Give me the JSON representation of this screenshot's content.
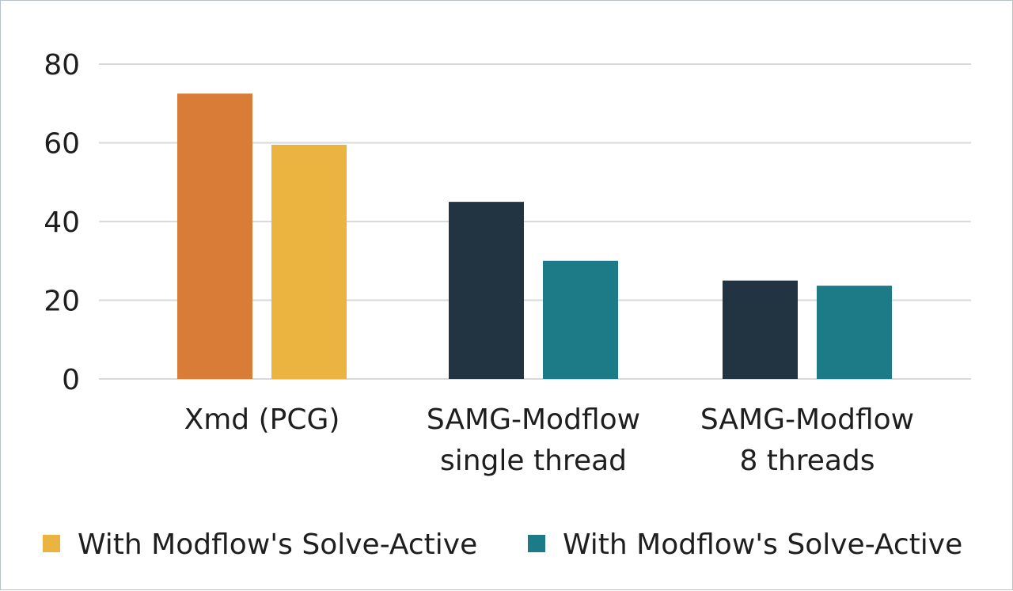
{
  "chart_data": {
    "type": "bar",
    "title": "",
    "xlabel": "",
    "ylabel": "",
    "ylim": [
      0,
      80
    ],
    "yticks": [
      0,
      20,
      40,
      60,
      80
    ],
    "grid": true,
    "categories": [
      [
        "Xmd (PCG)"
      ],
      [
        "SAMG-Modflow",
        "single thread"
      ],
      [
        "SAMG-Modflow",
        "8 threads"
      ]
    ],
    "bars": [
      [
        {
          "value": 72.5,
          "color": "#d97c38"
        },
        {
          "value": 59.5,
          "color": "#ebb440"
        }
      ],
      [
        {
          "value": 45,
          "color": "#223441"
        },
        {
          "value": 30,
          "color": "#1d7a87"
        }
      ],
      [
        {
          "value": 25,
          "color": "#223441"
        },
        {
          "value": 23.7,
          "color": "#1d7a87"
        }
      ]
    ],
    "legend": [
      {
        "label": "With Modflow's Solve-Active",
        "color": "#ebb440"
      },
      {
        "label": "With Modflow's Solve-Active",
        "color": "#1d7a87"
      }
    ],
    "legend_position": "bottom"
  }
}
